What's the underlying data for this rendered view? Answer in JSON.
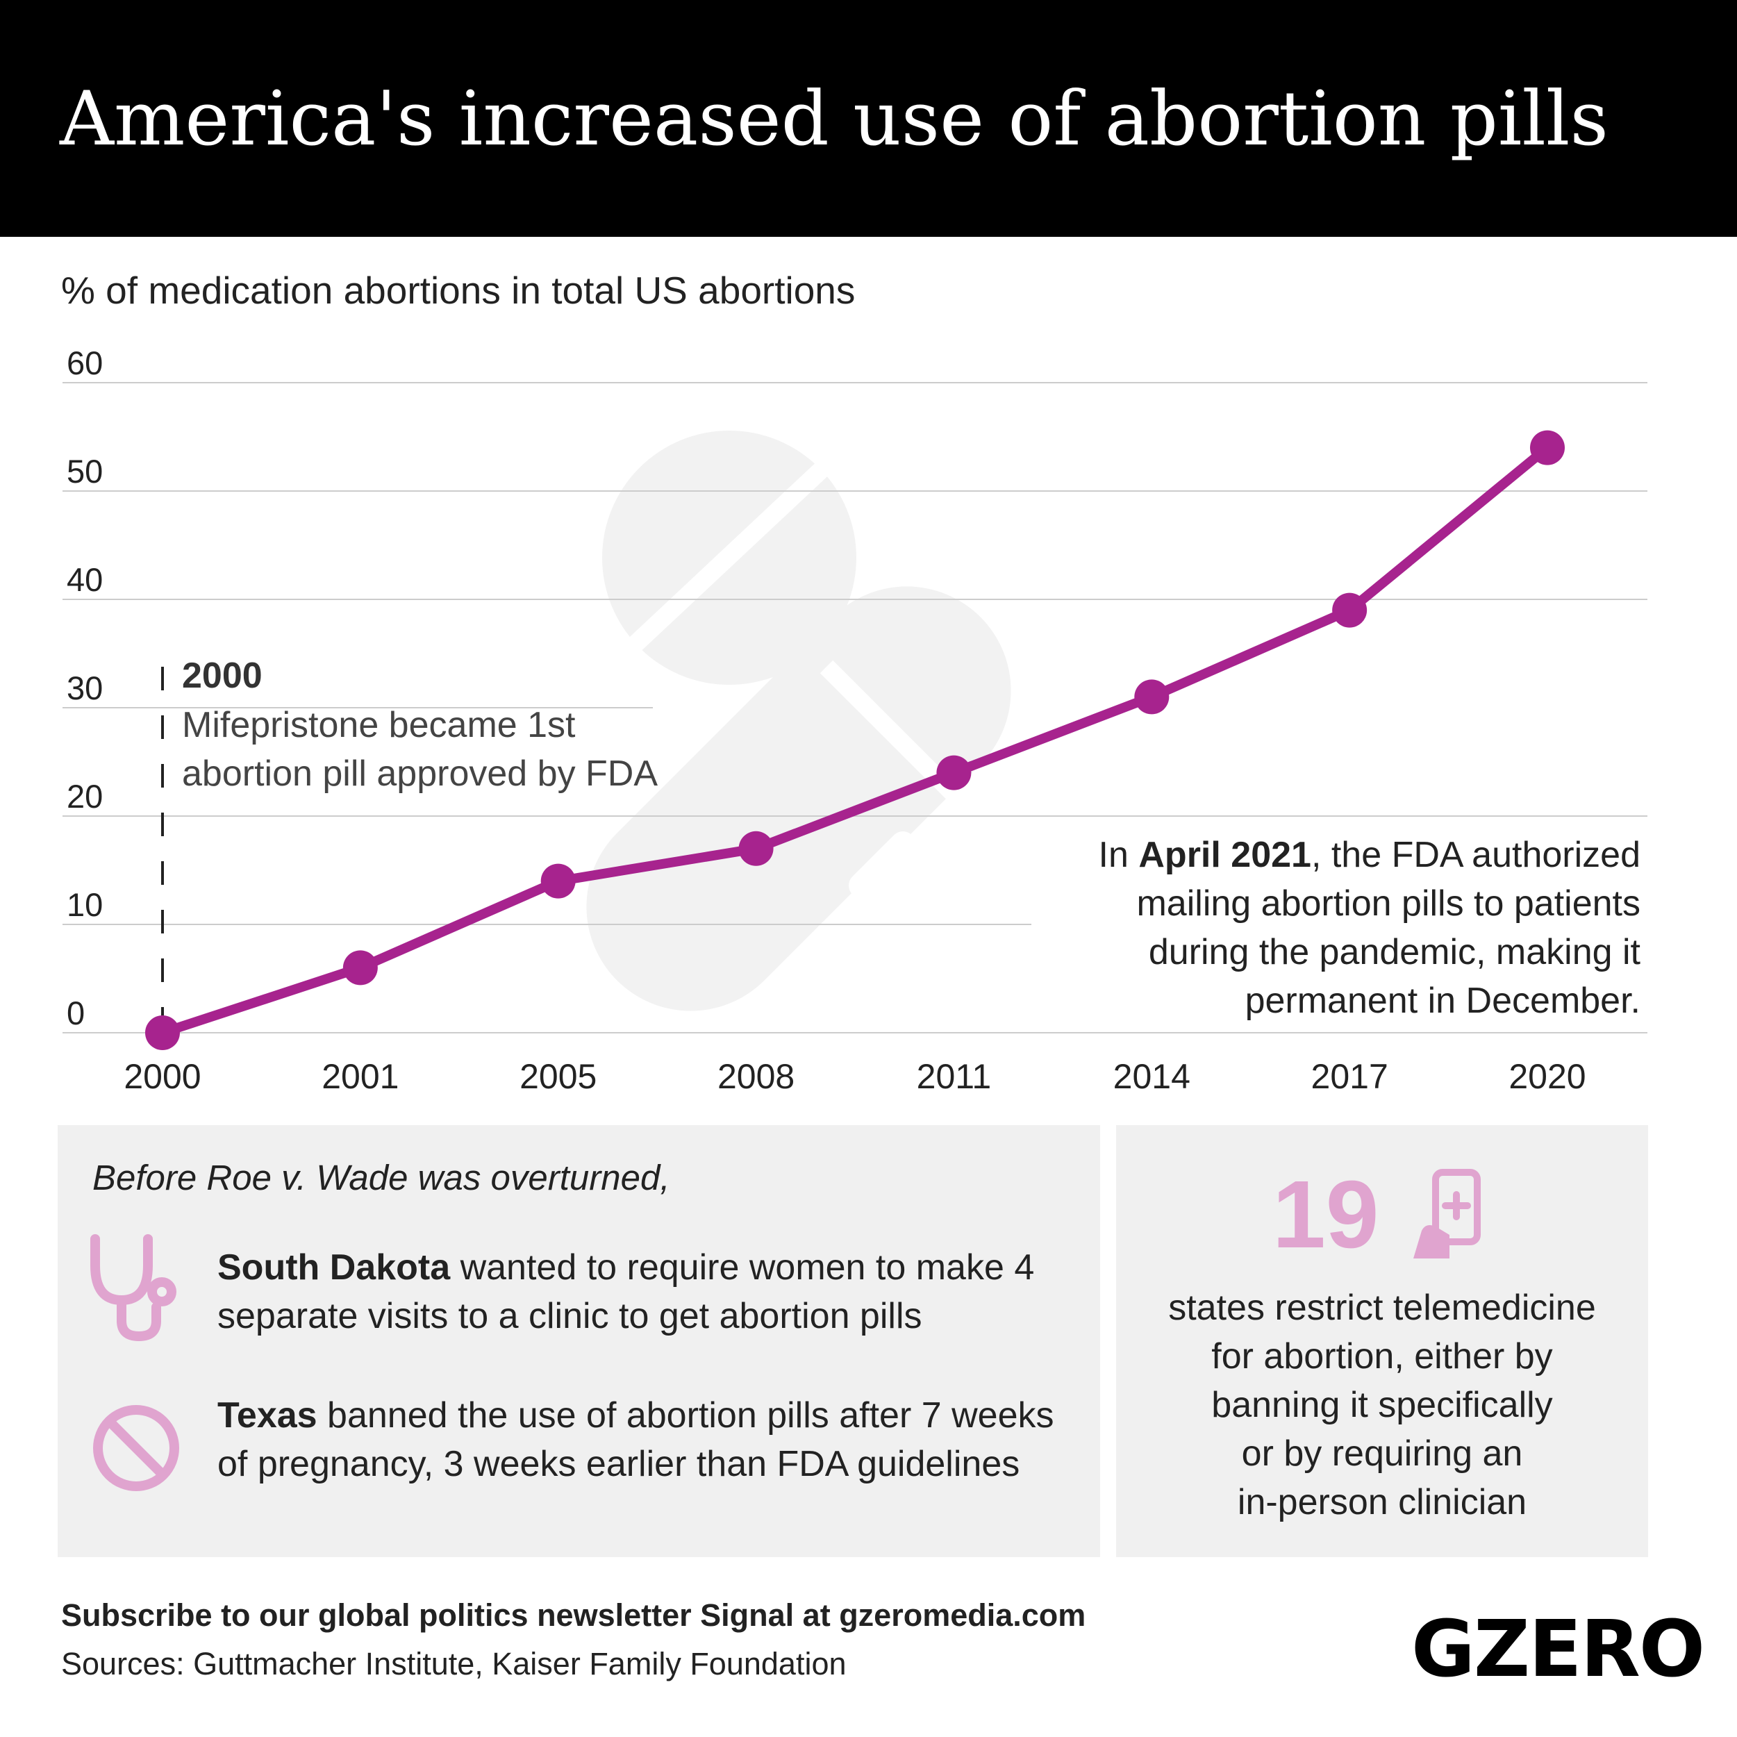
{
  "header": {
    "title": "America's increased use of abortion pills"
  },
  "chart_data": {
    "type": "line",
    "title": "America's increased use of abortion pills",
    "subtitle": "% of medication abortions in total US abortions",
    "categories": [
      "2000",
      "2001",
      "2005",
      "2008",
      "2011",
      "2014",
      "2017",
      "2020"
    ],
    "values": [
      0,
      6,
      14,
      17,
      24,
      31,
      39,
      54
    ],
    "ylim": [
      0,
      60
    ],
    "yticks": [
      "0",
      "10",
      "20",
      "30",
      "40",
      "50",
      "60"
    ],
    "grid": true,
    "line_color": "#a7238e",
    "annotations": {
      "first": {
        "year": "2000",
        "line1": "Mifepristone became 1st",
        "line2": "abortion pill approved by FDA"
      },
      "second": {
        "prefix": "In ",
        "bold": "April 2021",
        "line1_rest": ", the FDA authorized",
        "line2": "mailing abortion pills to patients",
        "line3": "during the pandemic, making it",
        "line4": "permanent in December."
      }
    }
  },
  "panel_left": {
    "intro": "Before Roe v. Wade was overturned,",
    "facts": [
      {
        "icon": "stethoscope-icon",
        "bold": "South Dakota",
        "rest": " wanted to require women to make 4 separate visits to a clinic to get abortion pills"
      },
      {
        "icon": "prohibited-icon",
        "bold": "Texas",
        "rest": " banned the use of abortion pills after 7 weeks of pregnancy, 3 weeks earlier than FDA guidelines"
      }
    ]
  },
  "panel_right": {
    "number": "19",
    "icon": "phone-medical-icon",
    "lines": [
      "states restrict telemedicine",
      "for abortion, either by",
      "banning it specifically",
      "or by requiring an",
      "in-person clinician"
    ]
  },
  "colors": {
    "accent": "#a7238e",
    "icon_pink": "#e0a4cf",
    "panel_bg": "#f0f0f0",
    "header_bg": "#000000"
  },
  "footer": {
    "subscribe": "Subscribe to our global politics newsletter Signal at gzeromedia.com",
    "sources": "Sources: Guttmacher Institute, Kaiser Family Foundation",
    "logo": "GZERO"
  }
}
